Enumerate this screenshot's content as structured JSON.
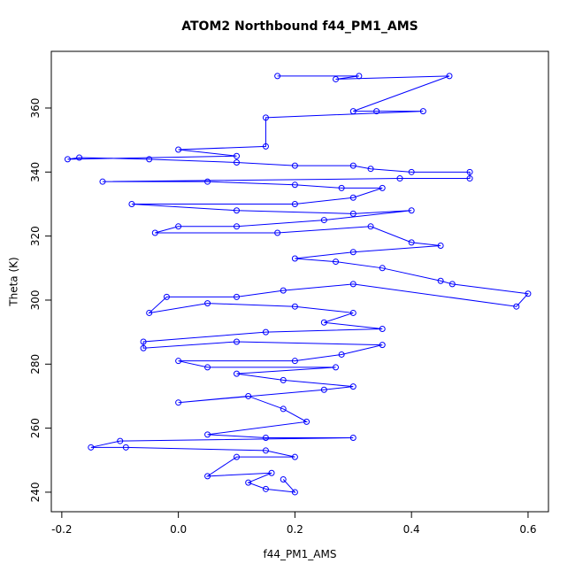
{
  "chart_data": {
    "type": "line",
    "title": "ATOM2 Northbound f44_PM1_AMS",
    "xlabel": "f44_PM1_AMS",
    "ylabel": "Theta (K)",
    "color": "#0000ff",
    "xlim": [
      -0.218,
      0.635
    ],
    "ylim": [
      233.9,
      377.7
    ],
    "xticks": [
      -0.2,
      {
        "value": 0,
        "label": "0.0"
      },
      0.2,
      0.4,
      0.6
    ],
    "yticks": [
      240,
      260,
      280,
      300,
      320,
      340,
      360
    ],
    "x": [
      0.17,
      0.31,
      0.27,
      0.465,
      0.3,
      0.34,
      0.42,
      0.15,
      0.15,
      0.0,
      0.1,
      -0.19,
      -0.17,
      -0.05,
      0.1,
      0.2,
      0.3,
      0.33,
      0.4,
      0.5,
      0.5,
      0.38,
      -0.13,
      0.05,
      0.2,
      0.28,
      0.35,
      0.3,
      0.2,
      -0.08,
      0.1,
      0.3,
      0.4,
      0.25,
      0.1,
      0.0,
      -0.04,
      0.17,
      0.33,
      0.4,
      0.45,
      0.3,
      0.2,
      0.27,
      0.35,
      0.45,
      0.47,
      0.6,
      0.58,
      0.3,
      0.18,
      0.1,
      -0.02,
      -0.05,
      0.05,
      0.2,
      0.3,
      0.25,
      0.35,
      0.15,
      -0.06,
      -0.06,
      0.1,
      0.35,
      0.28,
      0.2,
      0.0,
      0.05,
      0.27,
      0.1,
      0.18,
      0.3,
      0.25,
      0.0,
      0.12,
      0.18,
      0.22,
      0.05,
      0.15,
      0.3,
      -0.1,
      -0.15,
      -0.09,
      0.15,
      0.2,
      0.1,
      0.05,
      0.16,
      0.12,
      0.15,
      0.2,
      0.18
    ],
    "values": [
      370,
      370,
      369,
      370,
      359,
      359,
      359,
      357,
      348,
      347,
      345,
      344,
      344.5,
      344,
      343,
      342,
      342,
      341,
      340,
      340,
      338,
      338,
      337,
      337,
      336,
      335,
      335,
      332,
      330,
      330,
      328,
      327,
      328,
      325,
      323,
      323,
      321,
      321,
      323,
      318,
      317,
      315,
      313,
      312,
      310,
      306,
      305,
      302,
      298,
      305,
      303,
      301,
      301,
      296,
      299,
      298,
      296,
      293,
      291,
      290,
      287,
      285,
      287,
      286,
      283,
      281,
      281,
      279,
      279,
      277,
      275,
      273,
      272,
      268,
      270,
      266,
      262,
      258,
      257,
      257,
      256,
      254,
      254,
      253,
      251,
      251,
      245,
      246,
      243,
      241,
      240,
      244
    ]
  }
}
